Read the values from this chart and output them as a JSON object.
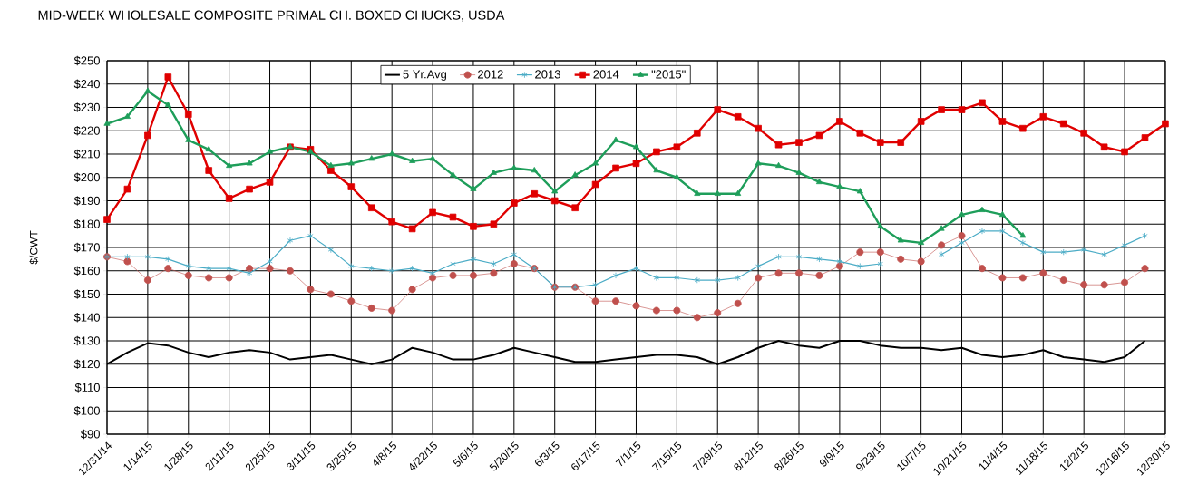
{
  "chart_data": {
    "type": "line",
    "title": "MID-WEEK WHOLESALE COMPOSITE PRIMAL CH. BOXED CHUCKS, USDA",
    "ylabel": "$/CWT",
    "categories": [
      "12/31/14",
      null,
      "1/14/15",
      null,
      "1/28/15",
      null,
      "2/11/15",
      null,
      "2/25/15",
      null,
      "3/11/15",
      null,
      "3/25/15",
      null,
      "4/8/15",
      null,
      "4/22/15",
      null,
      "5/6/15",
      null,
      "5/20/15",
      null,
      "6/3/15",
      null,
      "6/17/15",
      null,
      "7/1/15",
      null,
      "7/15/15",
      null,
      "7/29/15",
      null,
      "8/12/15",
      null,
      "8/26/15",
      null,
      "9/9/15",
      null,
      "9/23/15",
      null,
      "10/7/15",
      null,
      "10/21/15",
      null,
      "11/4/15",
      null,
      "11/18/15",
      null,
      "12/2/15",
      null,
      "12/16/15",
      null,
      "12/30/15"
    ],
    "series": [
      {
        "name": "5 Yr.Avg",
        "color": "#000000",
        "marker": "none",
        "values": [
          120,
          125,
          129,
          128,
          125,
          123,
          125,
          126,
          125,
          122,
          123,
          124,
          122,
          120,
          122,
          127,
          125,
          122,
          122,
          124,
          127,
          125,
          123,
          121,
          121,
          122,
          123,
          124,
          124,
          123,
          120,
          123,
          127,
          130,
          128,
          127,
          130,
          130,
          128,
          127,
          127,
          126,
          127,
          124,
          123,
          124,
          126,
          123,
          122,
          121,
          123,
          130,
          null
        ]
      },
      {
        "name": "2012",
        "color": "#c0504d",
        "marker": "circle",
        "values": [
          166,
          164,
          156,
          161,
          158,
          157,
          157,
          161,
          161,
          160,
          152,
          150,
          147,
          144,
          143,
          152,
          157,
          158,
          158,
          159,
          163,
          161,
          153,
          153,
          147,
          147,
          145,
          143,
          143,
          140,
          142,
          146,
          157,
          159,
          159,
          158,
          162,
          168,
          168,
          165,
          164,
          171,
          175,
          161,
          157,
          157,
          159,
          156,
          154,
          154,
          155,
          161,
          null
        ]
      },
      {
        "name": "2013",
        "color": "#4bacc6",
        "marker": "cross",
        "values": [
          166,
          166,
          166,
          165,
          162,
          161,
          161,
          159,
          164,
          173,
          175,
          169,
          162,
          161,
          160,
          161,
          159,
          163,
          165,
          163,
          167,
          161,
          153,
          153,
          154,
          158,
          161,
          157,
          157,
          156,
          156,
          157,
          162,
          166,
          166,
          165,
          164,
          162,
          163,
          null,
          null,
          167,
          172,
          177,
          177,
          172,
          168,
          168,
          169,
          167,
          171,
          175,
          null
        ]
      },
      {
        "name": "2014",
        "color": "#e00000",
        "marker": "square",
        "values": [
          182,
          195,
          218,
          243,
          227,
          203,
          191,
          195,
          198,
          213,
          212,
          203,
          196,
          187,
          181,
          178,
          185,
          183,
          179,
          180,
          189,
          193,
          190,
          187,
          197,
          204,
          206,
          211,
          213,
          219,
          229,
          226,
          221,
          214,
          215,
          218,
          224,
          219,
          215,
          215,
          224,
          229,
          229,
          232,
          224,
          221,
          226,
          223,
          219,
          213,
          211,
          217,
          223
        ]
      },
      {
        "name": "\"2015\"",
        "color": "#1e9e5a",
        "marker": "triangle",
        "values": [
          223,
          226,
          237,
          231,
          216,
          212,
          205,
          206,
          211,
          213,
          211,
          205,
          206,
          208,
          210,
          207,
          208,
          201,
          195,
          202,
          204,
          203,
          194,
          201,
          206,
          216,
          213,
          203,
          200,
          193,
          193,
          193,
          206,
          205,
          202,
          198,
          196,
          194,
          179,
          173,
          172,
          178,
          184,
          186,
          184,
          175,
          null,
          null,
          null,
          null,
          null,
          null,
          null
        ]
      }
    ],
    "ylim": [
      90,
      250
    ],
    "yticks": [
      {
        "value": 90,
        "label": "$90"
      },
      {
        "value": 100,
        "label": "$100"
      },
      {
        "value": 110,
        "label": "$110"
      },
      {
        "value": 120,
        "label": "$120"
      },
      {
        "value": 130,
        "label": "$130"
      },
      {
        "value": 140,
        "label": "$140"
      },
      {
        "value": 150,
        "label": "$150"
      },
      {
        "value": 160,
        "label": "$160"
      },
      {
        "value": 170,
        "label": "$170"
      },
      {
        "value": 180,
        "label": "$180"
      },
      {
        "value": 190,
        "label": "$190"
      },
      {
        "value": 200,
        "label": "$200"
      },
      {
        "value": 210,
        "label": "$210"
      },
      {
        "value": 220,
        "label": "$220"
      },
      {
        "value": 230,
        "label": "$230"
      },
      {
        "value": 240,
        "label": "$240"
      },
      {
        "value": 250,
        "label": "$250"
      }
    ],
    "grid": true,
    "legend": "top"
  }
}
